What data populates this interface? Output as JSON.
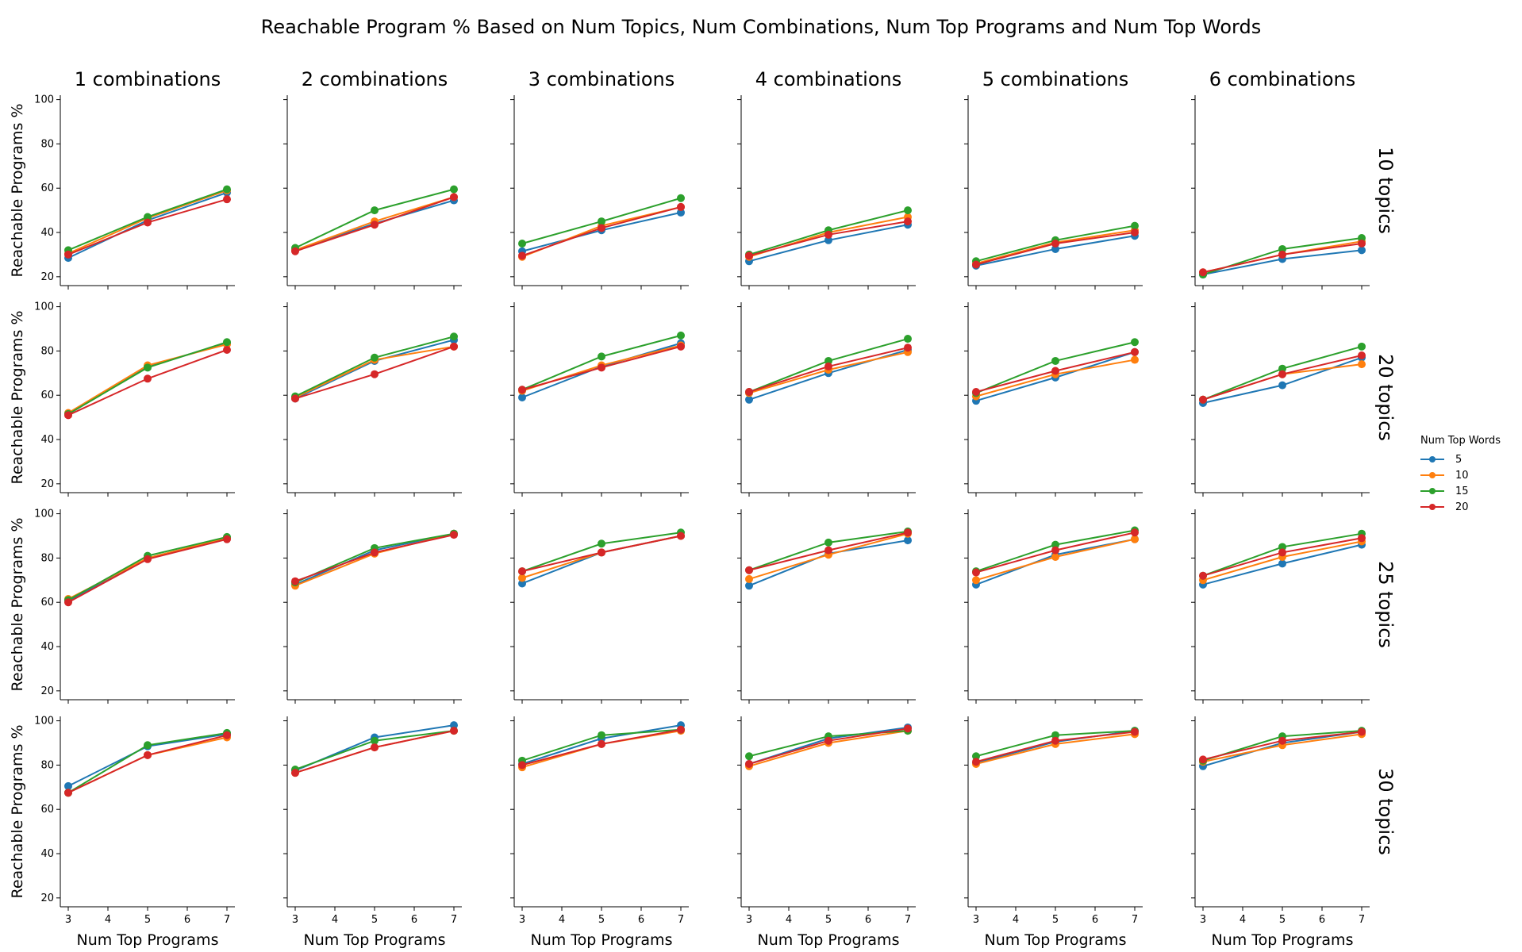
{
  "figure_title": "Reachable Program % Based on Num Topics, Num Combinations, Num Top Programs and Num Top Words",
  "legend": {
    "title": "Num Top Words",
    "items": [
      {
        "label": "5",
        "color": "#1f77b4"
      },
      {
        "label": "10",
        "color": "#ff7f0e"
      },
      {
        "label": "15",
        "color": "#2ca02c"
      },
      {
        "label": "20",
        "color": "#d62728"
      }
    ]
  },
  "chart_data": {
    "type": "line",
    "layout": "facet-grid",
    "col_facet_labels": [
      "1 combinations",
      "2 combinations",
      "3 combinations",
      "4 combinations",
      "5 combinations",
      "6 combinations"
    ],
    "row_facet_labels": [
      "10 topics",
      "20 topics",
      "25 topics",
      "30 topics"
    ],
    "xlabel": "Num Top Programs",
    "ylabel": "Reachable Programs %",
    "x": [
      3,
      5,
      7
    ],
    "xticks": [
      "3",
      "4",
      "5",
      "6",
      "7"
    ],
    "yticks": [
      "20",
      "40",
      "60",
      "80",
      "100"
    ],
    "xlim": [
      2.8,
      7.2
    ],
    "ylim": [
      16,
      102
    ],
    "series_names": [
      "5",
      "10",
      "15",
      "20"
    ],
    "series_colors": [
      "#1f77b4",
      "#ff7f0e",
      "#2ca02c",
      "#d62728"
    ],
    "panels": [
      [
        {
          "values": [
            [
              28.5,
              45.5,
              58
            ],
            [
              30.5,
              46.5,
              59
            ],
            [
              32,
              47,
              59.5
            ],
            [
              30,
              44.5,
              55
            ]
          ]
        },
        {
          "values": [
            [
              32,
              44,
              54.5
            ],
            [
              32,
              45,
              56
            ],
            [
              33,
              50,
              59.5
            ],
            [
              31.5,
              43.5,
              56
            ]
          ]
        },
        {
          "values": [
            [
              31.5,
              41,
              49
            ],
            [
              29,
              43,
              51.5
            ],
            [
              35,
              45,
              55.5
            ],
            [
              29.5,
              42,
              51.5
            ]
          ]
        },
        {
          "values": [
            [
              27,
              36.5,
              43.5
            ],
            [
              29,
              40,
              47
            ],
            [
              30,
              41,
              50
            ],
            [
              29.5,
              39,
              45
            ]
          ]
        },
        {
          "values": [
            [
              25,
              32.5,
              38.5
            ],
            [
              26,
              35.5,
              41
            ],
            [
              27,
              36.5,
              43
            ],
            [
              25.5,
              35,
              40
            ]
          ]
        },
        {
          "values": [
            [
              21,
              28,
              32
            ],
            [
              22,
              30,
              36
            ],
            [
              21,
              32.5,
              37.5
            ],
            [
              22,
              30,
              35
            ]
          ]
        }
      ],
      [
        {
          "values": [
            [
              51.5,
              73,
              83.5
            ],
            [
              52,
              73.5,
              83
            ],
            [
              51.5,
              72.5,
              84
            ],
            [
              51,
              67.5,
              80.5
            ]
          ]
        },
        {
          "values": [
            [
              58.5,
              75.5,
              85
            ],
            [
              59,
              76,
              82
            ],
            [
              59.5,
              77,
              86.5
            ],
            [
              58.5,
              69.5,
              82
            ]
          ]
        },
        {
          "values": [
            [
              59,
              73,
              83.5
            ],
            [
              62,
              73.5,
              82.5
            ],
            [
              62.5,
              77.5,
              87
            ],
            [
              62.5,
              72.5,
              82
            ]
          ]
        },
        {
          "values": [
            [
              58,
              70,
              80.5
            ],
            [
              61,
              71.5,
              79.5
            ],
            [
              61.5,
              75.5,
              85.5
            ],
            [
              61.5,
              73,
              81.5
            ]
          ]
        },
        {
          "values": [
            [
              57.5,
              68,
              79.5
            ],
            [
              59.5,
              69.5,
              76
            ],
            [
              61,
              75.5,
              84
            ],
            [
              61.5,
              71,
              79.5
            ]
          ]
        },
        {
          "values": [
            [
              56.5,
              64.5,
              77
            ],
            [
              58,
              69.5,
              74
            ],
            [
              58,
              72,
              82
            ],
            [
              58,
              69.5,
              78
            ]
          ]
        }
      ],
      [
        {
          "values": [
            [
              60.5,
              80,
              89
            ],
            [
              61.5,
              80,
              89
            ],
            [
              61,
              81,
              89.5
            ],
            [
              60,
              79.5,
              88.5
            ]
          ]
        },
        {
          "values": [
            [
              68,
              83.5,
              91
            ],
            [
              67.5,
              82,
              91
            ],
            [
              69,
              84.5,
              91
            ],
            [
              69.5,
              82.5,
              90.5
            ]
          ]
        },
        {
          "values": [
            [
              68.5,
              82.5,
              90
            ],
            [
              71,
              82.5,
              90
            ],
            [
              74,
              86.5,
              91.5
            ],
            [
              74,
              82.5,
              90
            ]
          ]
        },
        {
          "values": [
            [
              67.5,
              82,
              88
            ],
            [
              70.5,
              81.5,
              91
            ],
            [
              74.5,
              87,
              92
            ],
            [
              74.5,
              83.5,
              91.5
            ]
          ]
        },
        {
          "values": [
            [
              68,
              81.5,
              88.5
            ],
            [
              70,
              80.5,
              88.5
            ],
            [
              74,
              86,
              92.5
            ],
            [
              73.5,
              83.5,
              91.5
            ]
          ]
        },
        {
          "values": [
            [
              68,
              77.5,
              86
            ],
            [
              70,
              80.5,
              87.5
            ],
            [
              72,
              85,
              91
            ],
            [
              72,
              82.5,
              89
            ]
          ]
        }
      ],
      [
        {
          "values": [
            [
              70.5,
              88.5,
              94
            ],
            [
              67.5,
              84.5,
              92.5
            ],
            [
              67.5,
              89,
              94.5
            ],
            [
              67.5,
              84.5,
              93.5
            ]
          ]
        },
        {
          "values": [
            [
              77.5,
              92.5,
              98
            ],
            [
              76.5,
              88,
              95.5
            ],
            [
              78,
              91,
              95.5
            ],
            [
              76.5,
              88,
              95.5
            ]
          ]
        },
        {
          "values": [
            [
              80.5,
              92,
              98
            ],
            [
              79,
              89.5,
              95.5
            ],
            [
              82,
              93.5,
              96
            ],
            [
              80,
              89.5,
              96
            ]
          ]
        },
        {
          "values": [
            [
              80.5,
              92,
              97
            ],
            [
              79.5,
              90,
              95.5
            ],
            [
              84,
              93,
              95.5
            ],
            [
              80.5,
              91,
              96.5
            ]
          ]
        },
        {
          "values": [
            [
              81,
              90.5,
              95.5
            ],
            [
              80.5,
              89.5,
              94
            ],
            [
              84,
              93.5,
              95.5
            ],
            [
              81.5,
              91,
              95
            ]
          ]
        },
        {
          "values": [
            [
              79.5,
              90,
              95
            ],
            [
              81.5,
              89,
              94
            ],
            [
              82,
              93,
              95.5
            ],
            [
              82.5,
              91,
              95
            ]
          ]
        }
      ]
    ]
  }
}
